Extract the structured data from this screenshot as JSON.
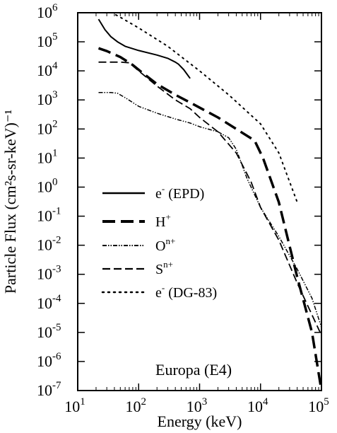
{
  "chart_data": {
    "type": "line",
    "xlabel": "Energy (keV)",
    "ylabel": "Particle Flux (cm²s-sr-keV)⁻¹",
    "xscale": "log",
    "yscale": "log",
    "xlim": [
      10,
      100000
    ],
    "ylim": [
      1e-07,
      1000000.0
    ],
    "legend_position": "left-middle",
    "annotation": "Europa (E4)",
    "x_ticks": [
      {
        "base": "10",
        "exp": "1",
        "value": 10
      },
      {
        "base": "10",
        "exp": "2",
        "value": 100
      },
      {
        "base": "10",
        "exp": "3",
        "value": 1000
      },
      {
        "base": "10",
        "exp": "4",
        "value": 10000
      },
      {
        "base": "10",
        "exp": "5",
        "value": 100000
      }
    ],
    "y_ticks": [
      {
        "base": "10",
        "exp": "6",
        "value": 1000000.0
      },
      {
        "base": "10",
        "exp": "5",
        "value": 100000.0
      },
      {
        "base": "10",
        "exp": "4",
        "value": 10000.0
      },
      {
        "base": "10",
        "exp": "3",
        "value": 1000.0
      },
      {
        "base": "10",
        "exp": "2",
        "value": 100.0
      },
      {
        "base": "10",
        "exp": "1",
        "value": 10.0
      },
      {
        "base": "10",
        "exp": "0",
        "value": 1
      },
      {
        "base": "10",
        "exp": "-1",
        "value": 0.1
      },
      {
        "base": "10",
        "exp": "-2",
        "value": 0.01
      },
      {
        "base": "10",
        "exp": "-3",
        "value": 0.001
      },
      {
        "base": "10",
        "exp": "-4",
        "value": 0.0001
      },
      {
        "base": "10",
        "exp": "-5",
        "value": 1e-05
      },
      {
        "base": "10",
        "exp": "-6",
        "value": 1e-06
      },
      {
        "base": "10",
        "exp": "-7",
        "value": 1e-07
      }
    ],
    "series": [
      {
        "name": "e⁻ (EPD)",
        "legend_main": "e",
        "legend_sup": "-",
        "legend_tail": " (EPD)",
        "style": "solid",
        "width": 2,
        "x": [
          22,
          28,
          35,
          45,
          60,
          100,
          200,
          300,
          400,
          450,
          550,
          700
        ],
        "y": [
          600000,
          260000,
          150000,
          100000,
          70000,
          50000,
          35000,
          27000,
          20000,
          17000,
          11000,
          5500
        ]
      },
      {
        "name": "H⁺",
        "legend_main": "H",
        "legend_sup": "+",
        "legend_tail": "",
        "style": "dash-long",
        "width": 3.5,
        "x": [
          22,
          30,
          50,
          80,
          120,
          200,
          400,
          800,
          2000,
          4000,
          8000,
          11000,
          20000,
          40000,
          70000,
          100000
        ],
        "y": [
          60000,
          48000,
          30000,
          16000,
          8000,
          3500,
          1500,
          700,
          250,
          100,
          40,
          10,
          0.3,
          0.0008,
          1e-05,
          1e-07
        ]
      },
      {
        "name": "Oⁿ⁺",
        "legend_main": "O",
        "legend_sup": "n+",
        "legend_tail": "",
        "style": "dash-dot-dot",
        "width": 1.5,
        "x": [
          22,
          28,
          35,
          45,
          60,
          100,
          200,
          400,
          700,
          1000,
          2000,
          3000,
          4000,
          6000,
          10000,
          20000,
          40000,
          70000,
          100000
        ],
        "y": [
          1800,
          1800,
          1800,
          1700,
          1200,
          600,
          350,
          220,
          160,
          120,
          80,
          50,
          20,
          2,
          0.2,
          0.02,
          0.0015,
          0.00015,
          1.5e-05
        ]
      },
      {
        "name": "Sⁿ⁺",
        "legend_main": "S",
        "legend_sup": "n+",
        "legend_tail": "",
        "style": "dash",
        "width": 1.8,
        "x": [
          22,
          30,
          50,
          70,
          100,
          200,
          400,
          700,
          1000,
          2000,
          4000,
          7000,
          10000,
          20000,
          40000,
          100000
        ],
        "y": [
          20000,
          20000,
          20000,
          19000,
          10000,
          3000,
          1000,
          500,
          250,
          80,
          15,
          1.5,
          0.2,
          0.015,
          0.0005,
          8e-06
        ]
      },
      {
        "name": "e⁻ (DG-83)",
        "legend_main": "e",
        "legend_sup": "-",
        "legend_tail": " (DG-83)",
        "style": "dot",
        "width": 2,
        "x": [
          20,
          50,
          100,
          300,
          1000,
          3000,
          10000,
          20000,
          40000
        ],
        "y": [
          2000000,
          700000,
          300000,
          70000,
          10000,
          1500,
          150,
          15,
          0.3
        ]
      }
    ]
  }
}
